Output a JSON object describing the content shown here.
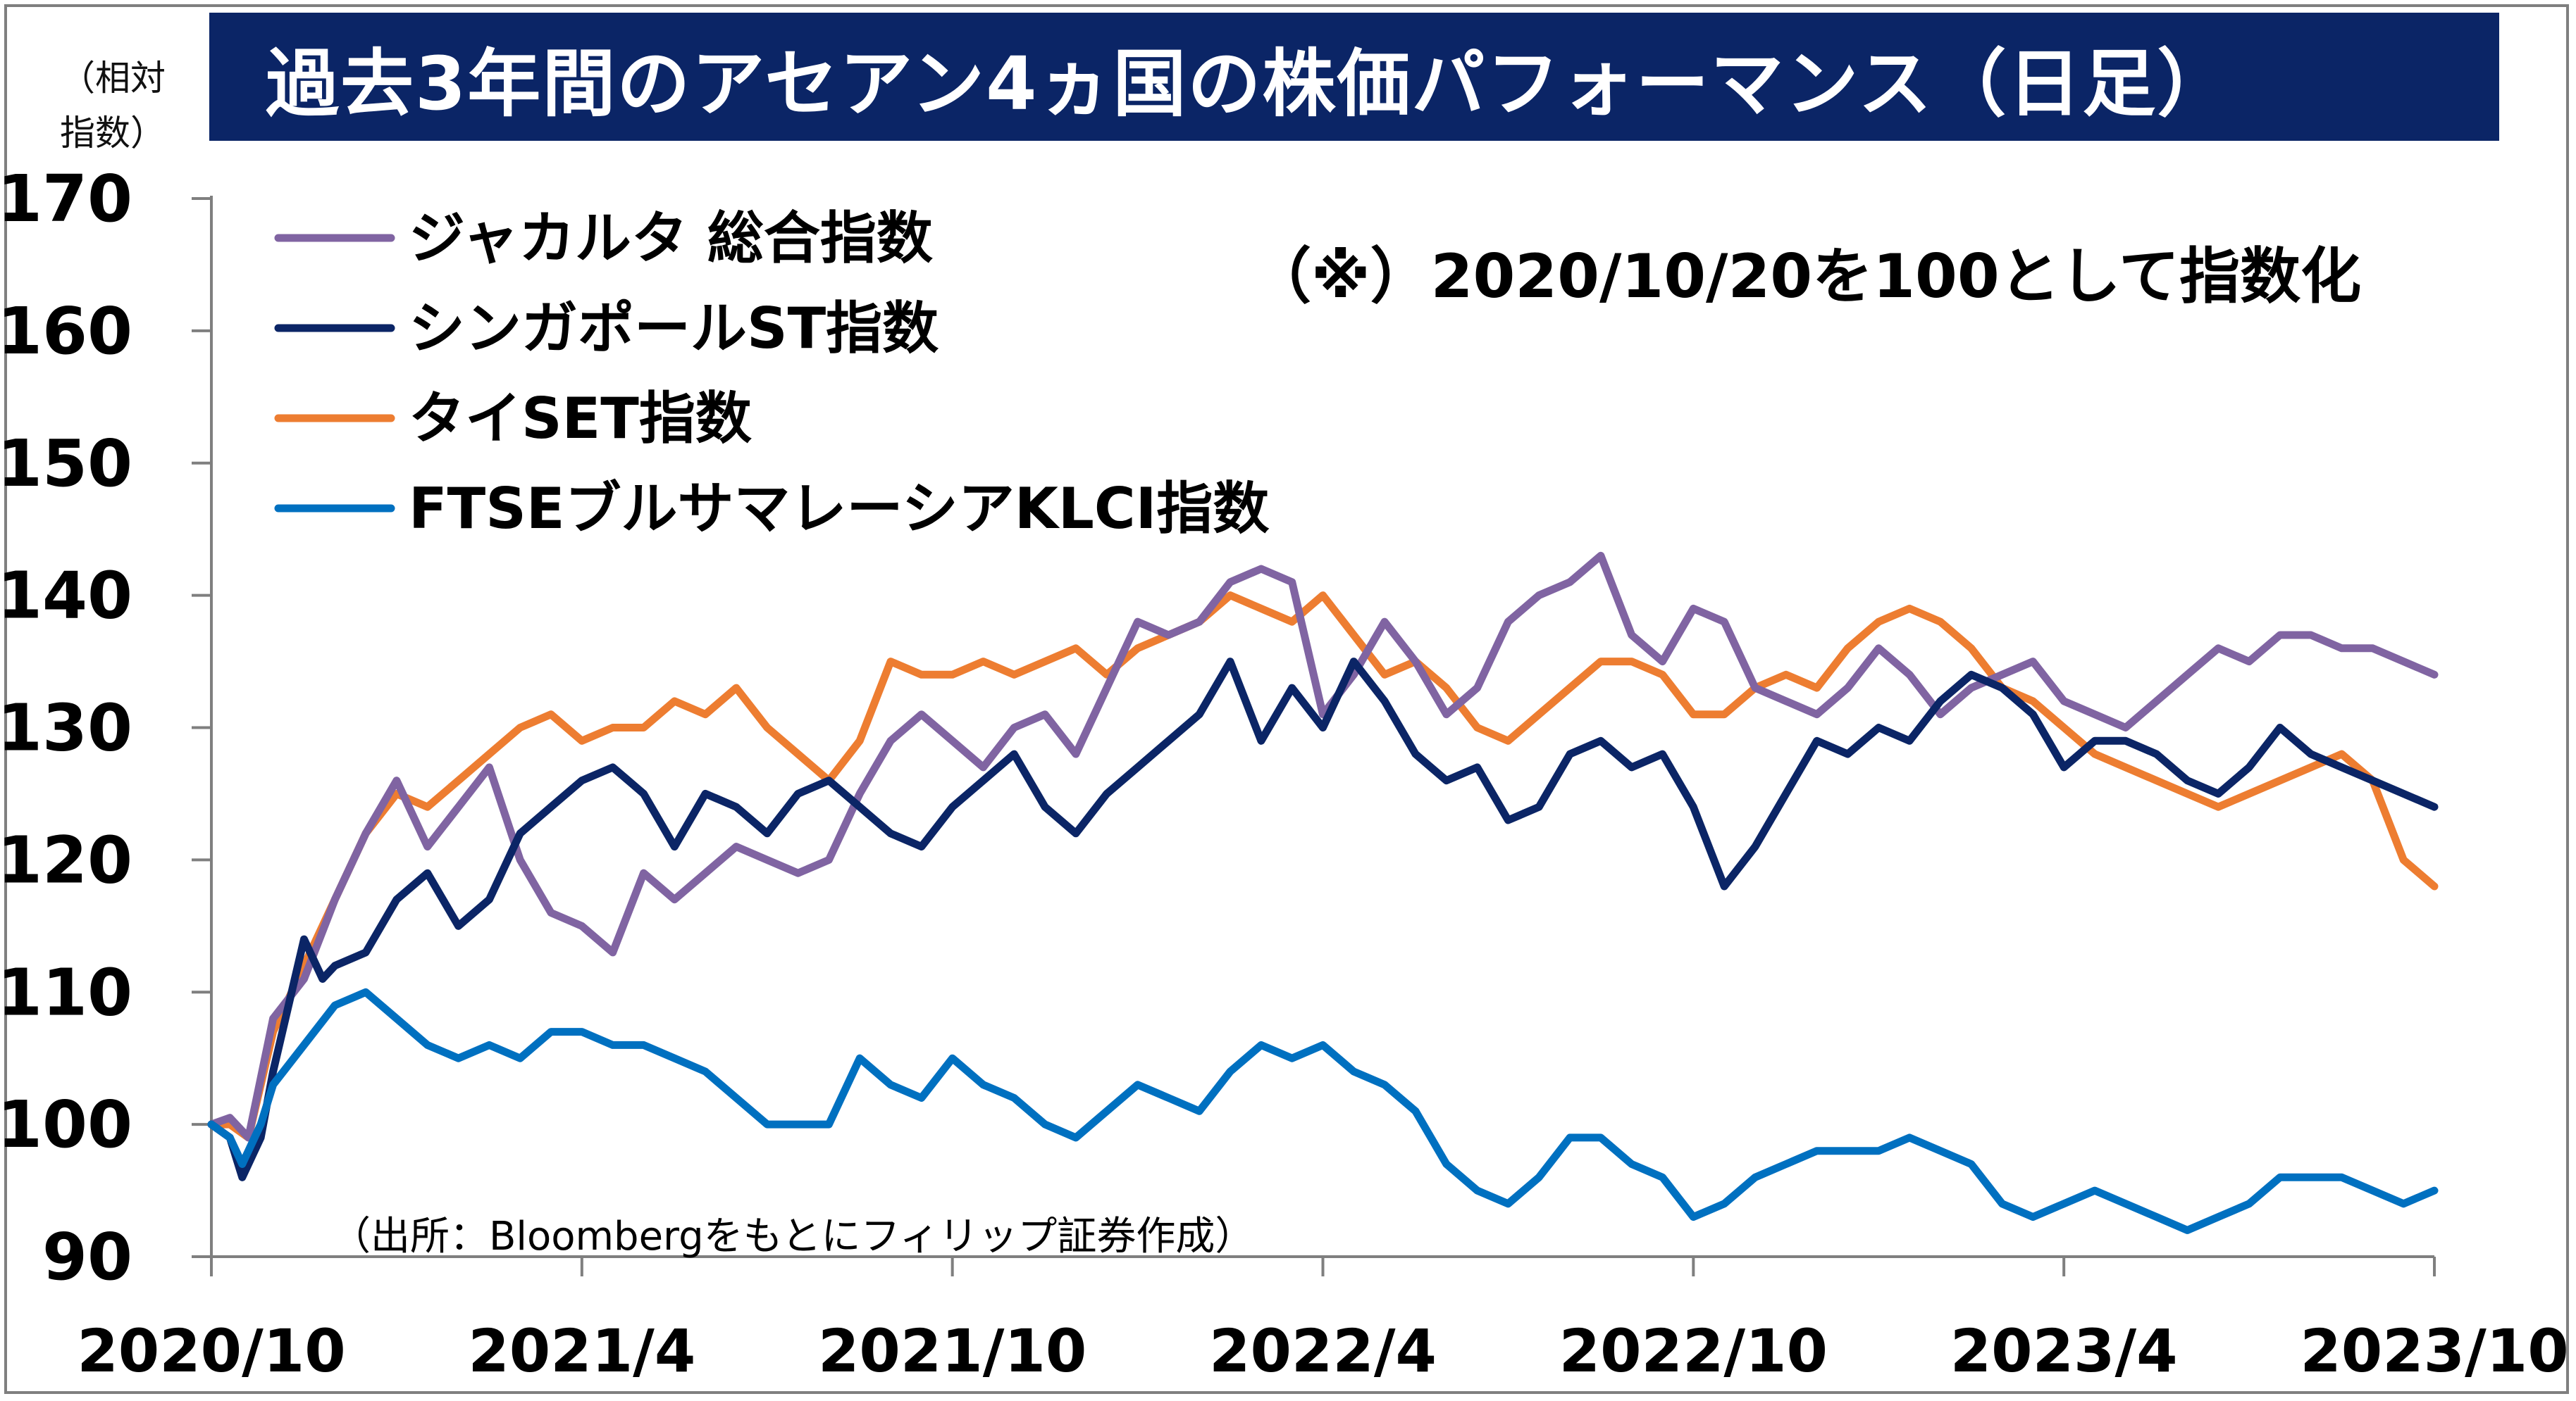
{
  "header": {
    "title": "過去3年間のアセアン4ヵ国の株価パフォーマンス（日足）",
    "y_unit_label": "（相対\n指数）"
  },
  "note": "（※）2020/10/20を100として指数化",
  "source": "（出所：Bloombergをもとにフィリップ証券作成）",
  "chart_data": {
    "type": "line",
    "xlabel": "",
    "ylabel": "（相対 指数）",
    "ylim": [
      90,
      170
    ],
    "yticks": [
      90,
      100,
      110,
      120,
      130,
      140,
      150,
      160,
      170
    ],
    "xticks": [
      "2020/10",
      "2021/4",
      "2021/10",
      "2022/4",
      "2022/10",
      "2023/4",
      "2023/10"
    ],
    "x_range_months": [
      0,
      36
    ],
    "grid": false,
    "legend_position": "top-left",
    "series": [
      {
        "name": "ジャカルタ 総合指数",
        "color": "#8064a2",
        "points": [
          [
            0,
            100
          ],
          [
            0.3,
            100.5
          ],
          [
            0.6,
            99
          ],
          [
            1,
            108
          ],
          [
            1.5,
            111
          ],
          [
            2,
            117
          ],
          [
            2.5,
            122
          ],
          [
            3,
            126
          ],
          [
            3.5,
            121
          ],
          [
            4,
            124
          ],
          [
            4.5,
            127
          ],
          [
            5,
            120
          ],
          [
            5.5,
            116
          ],
          [
            6,
            115
          ],
          [
            6.5,
            113
          ],
          [
            7,
            119
          ],
          [
            7.5,
            117
          ],
          [
            8,
            119
          ],
          [
            8.5,
            121
          ],
          [
            9,
            120
          ],
          [
            9.5,
            119
          ],
          [
            10,
            120
          ],
          [
            10.5,
            125
          ],
          [
            11,
            129
          ],
          [
            11.5,
            131
          ],
          [
            12,
            129
          ],
          [
            12.5,
            127
          ],
          [
            13,
            130
          ],
          [
            13.5,
            131
          ],
          [
            14,
            128
          ],
          [
            14.5,
            133
          ],
          [
            15,
            138
          ],
          [
            15.5,
            137
          ],
          [
            16,
            138
          ],
          [
            16.5,
            141
          ],
          [
            17,
            142
          ],
          [
            17.5,
            141
          ],
          [
            18,
            131
          ],
          [
            18.5,
            134
          ],
          [
            19,
            138
          ],
          [
            19.5,
            135
          ],
          [
            20,
            131
          ],
          [
            20.5,
            133
          ],
          [
            21,
            138
          ],
          [
            21.5,
            140
          ],
          [
            22,
            141
          ],
          [
            22.5,
            143
          ],
          [
            23,
            137
          ],
          [
            23.5,
            135
          ],
          [
            24,
            139
          ],
          [
            24.5,
            138
          ],
          [
            25,
            133
          ],
          [
            25.5,
            132
          ],
          [
            26,
            131
          ],
          [
            26.5,
            133
          ],
          [
            27,
            136
          ],
          [
            27.5,
            134
          ],
          [
            28,
            131
          ],
          [
            28.5,
            133
          ],
          [
            29,
            134
          ],
          [
            29.5,
            135
          ],
          [
            30,
            132
          ],
          [
            30.5,
            131
          ],
          [
            31,
            130
          ],
          [
            31.5,
            132
          ],
          [
            32,
            134
          ],
          [
            32.5,
            136
          ],
          [
            33,
            135
          ],
          [
            33.5,
            137
          ],
          [
            34,
            137
          ],
          [
            34.5,
            136
          ],
          [
            35,
            136
          ],
          [
            35.5,
            135
          ],
          [
            36,
            134
          ]
        ]
      },
      {
        "name": "シンガポールST指数",
        "color": "#0b2566",
        "points": [
          [
            0,
            100
          ],
          [
            0.3,
            99
          ],
          [
            0.5,
            96
          ],
          [
            0.8,
            99
          ],
          [
            1,
            104
          ],
          [
            1.3,
            110
          ],
          [
            1.5,
            114
          ],
          [
            1.8,
            111
          ],
          [
            2,
            112
          ],
          [
            2.5,
            113
          ],
          [
            3,
            117
          ],
          [
            3.5,
            119
          ],
          [
            4,
            115
          ],
          [
            4.5,
            117
          ],
          [
            5,
            122
          ],
          [
            5.5,
            124
          ],
          [
            6,
            126
          ],
          [
            6.5,
            127
          ],
          [
            7,
            125
          ],
          [
            7.5,
            121
          ],
          [
            8,
            125
          ],
          [
            8.5,
            124
          ],
          [
            9,
            122
          ],
          [
            9.5,
            125
          ],
          [
            10,
            126
          ],
          [
            10.5,
            124
          ],
          [
            11,
            122
          ],
          [
            11.5,
            121
          ],
          [
            12,
            124
          ],
          [
            12.5,
            126
          ],
          [
            13,
            128
          ],
          [
            13.5,
            124
          ],
          [
            14,
            122
          ],
          [
            14.5,
            125
          ],
          [
            15,
            127
          ],
          [
            15.5,
            129
          ],
          [
            16,
            131
          ],
          [
            16.5,
            135
          ],
          [
            17,
            129
          ],
          [
            17.5,
            133
          ],
          [
            18,
            130
          ],
          [
            18.5,
            135
          ],
          [
            19,
            132
          ],
          [
            19.5,
            128
          ],
          [
            20,
            126
          ],
          [
            20.5,
            127
          ],
          [
            21,
            123
          ],
          [
            21.5,
            124
          ],
          [
            22,
            128
          ],
          [
            22.5,
            129
          ],
          [
            23,
            127
          ],
          [
            23.5,
            128
          ],
          [
            24,
            124
          ],
          [
            24.5,
            118
          ],
          [
            25,
            121
          ],
          [
            25.5,
            125
          ],
          [
            26,
            129
          ],
          [
            26.5,
            128
          ],
          [
            27,
            130
          ],
          [
            27.5,
            129
          ],
          [
            28,
            132
          ],
          [
            28.5,
            134
          ],
          [
            29,
            133
          ],
          [
            29.5,
            131
          ],
          [
            30,
            127
          ],
          [
            30.5,
            129
          ],
          [
            31,
            129
          ],
          [
            31.5,
            128
          ],
          [
            32,
            126
          ],
          [
            32.5,
            125
          ],
          [
            33,
            127
          ],
          [
            33.5,
            130
          ],
          [
            34,
            128
          ],
          [
            34.5,
            127
          ],
          [
            35,
            126
          ],
          [
            35.5,
            125
          ],
          [
            36,
            124
          ]
        ]
      },
      {
        "name": "タイSET指数",
        "color": "#ed7d31",
        "points": [
          [
            0,
            100
          ],
          [
            0.3,
            100
          ],
          [
            0.6,
            99
          ],
          [
            1,
            107
          ],
          [
            1.5,
            112
          ],
          [
            2,
            117
          ],
          [
            2.5,
            122
          ],
          [
            3,
            125
          ],
          [
            3.5,
            124
          ],
          [
            4,
            126
          ],
          [
            4.5,
            128
          ],
          [
            5,
            130
          ],
          [
            5.5,
            131
          ],
          [
            6,
            129
          ],
          [
            6.5,
            130
          ],
          [
            7,
            130
          ],
          [
            7.5,
            132
          ],
          [
            8,
            131
          ],
          [
            8.5,
            133
          ],
          [
            9,
            130
          ],
          [
            9.5,
            128
          ],
          [
            10,
            126
          ],
          [
            10.5,
            129
          ],
          [
            11,
            135
          ],
          [
            11.5,
            134
          ],
          [
            12,
            134
          ],
          [
            12.5,
            135
          ],
          [
            13,
            134
          ],
          [
            13.5,
            135
          ],
          [
            14,
            136
          ],
          [
            14.5,
            134
          ],
          [
            15,
            136
          ],
          [
            15.5,
            137
          ],
          [
            16,
            138
          ],
          [
            16.5,
            140
          ],
          [
            17,
            139
          ],
          [
            17.5,
            138
          ],
          [
            18,
            140
          ],
          [
            18.5,
            137
          ],
          [
            19,
            134
          ],
          [
            19.5,
            135
          ],
          [
            20,
            133
          ],
          [
            20.5,
            130
          ],
          [
            21,
            129
          ],
          [
            21.5,
            131
          ],
          [
            22,
            133
          ],
          [
            22.5,
            135
          ],
          [
            23,
            135
          ],
          [
            23.5,
            134
          ],
          [
            24,
            131
          ],
          [
            24.5,
            131
          ],
          [
            25,
            133
          ],
          [
            25.5,
            134
          ],
          [
            26,
            133
          ],
          [
            26.5,
            136
          ],
          [
            27,
            138
          ],
          [
            27.5,
            139
          ],
          [
            28,
            138
          ],
          [
            28.5,
            136
          ],
          [
            29,
            133
          ],
          [
            29.5,
            132
          ],
          [
            30,
            130
          ],
          [
            30.5,
            128
          ],
          [
            31,
            127
          ],
          [
            31.5,
            126
          ],
          [
            32,
            125
          ],
          [
            32.5,
            124
          ],
          [
            33,
            125
          ],
          [
            33.5,
            126
          ],
          [
            34,
            127
          ],
          [
            34.5,
            128
          ],
          [
            35,
            126
          ],
          [
            35.5,
            120
          ],
          [
            36,
            118
          ]
        ]
      },
      {
        "name": "FTSEブルサマレーシアKLCI指数",
        "color": "#0070c0",
        "points": [
          [
            0,
            100
          ],
          [
            0.3,
            99
          ],
          [
            0.5,
            97
          ],
          [
            0.8,
            100
          ],
          [
            1,
            103
          ],
          [
            1.5,
            106
          ],
          [
            2,
            109
          ],
          [
            2.5,
            110
          ],
          [
            3,
            108
          ],
          [
            3.5,
            106
          ],
          [
            4,
            105
          ],
          [
            4.5,
            106
          ],
          [
            5,
            105
          ],
          [
            5.5,
            107
          ],
          [
            6,
            107
          ],
          [
            6.5,
            106
          ],
          [
            7,
            106
          ],
          [
            7.5,
            105
          ],
          [
            8,
            104
          ],
          [
            8.5,
            102
          ],
          [
            9,
            100
          ],
          [
            9.5,
            100
          ],
          [
            10,
            100
          ],
          [
            10.5,
            105
          ],
          [
            11,
            103
          ],
          [
            11.5,
            102
          ],
          [
            12,
            105
          ],
          [
            12.5,
            103
          ],
          [
            13,
            102
          ],
          [
            13.5,
            100
          ],
          [
            14,
            99
          ],
          [
            14.5,
            101
          ],
          [
            15,
            103
          ],
          [
            15.5,
            102
          ],
          [
            16,
            101
          ],
          [
            16.5,
            104
          ],
          [
            17,
            106
          ],
          [
            17.5,
            105
          ],
          [
            18,
            106
          ],
          [
            18.5,
            104
          ],
          [
            19,
            103
          ],
          [
            19.5,
            101
          ],
          [
            20,
            97
          ],
          [
            20.5,
            95
          ],
          [
            21,
            94
          ],
          [
            21.5,
            96
          ],
          [
            22,
            99
          ],
          [
            22.5,
            99
          ],
          [
            23,
            97
          ],
          [
            23.5,
            96
          ],
          [
            24,
            93
          ],
          [
            24.5,
            94
          ],
          [
            25,
            96
          ],
          [
            25.5,
            97
          ],
          [
            26,
            98
          ],
          [
            26.5,
            98
          ],
          [
            27,
            98
          ],
          [
            27.5,
            99
          ],
          [
            28,
            98
          ],
          [
            28.5,
            97
          ],
          [
            29,
            94
          ],
          [
            29.5,
            93
          ],
          [
            30,
            94
          ],
          [
            30.5,
            95
          ],
          [
            31,
            94
          ],
          [
            31.5,
            93
          ],
          [
            32,
            92
          ],
          [
            32.5,
            93
          ],
          [
            33,
            94
          ],
          [
            33.5,
            96
          ],
          [
            34,
            96
          ],
          [
            34.5,
            96
          ],
          [
            35,
            95
          ],
          [
            35.5,
            94
          ],
          [
            36,
            95
          ]
        ]
      }
    ]
  }
}
